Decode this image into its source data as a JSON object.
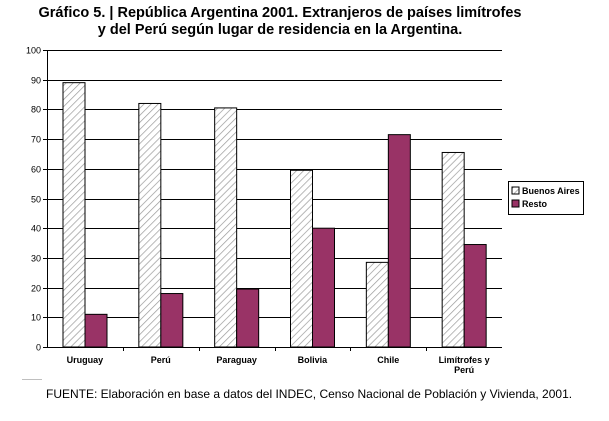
{
  "chart_data": {
    "type": "bar",
    "title_line1": "Gráfico 5. | República Argentina 2001. Extranjeros de países limítrofes",
    "title_line2": "y del Perú según lugar de residencia en la Argentina.",
    "categories": [
      "Uruguay",
      "Perú",
      "Paraguay",
      "Bolivia",
      "Chile",
      "Limítrofes y Perú"
    ],
    "series": [
      {
        "name": "Buenos Aires",
        "values": [
          89,
          82,
          80.5,
          59.5,
          28.5,
          65.5
        ],
        "color": "#ffffff",
        "pattern": "diagonal-hatch"
      },
      {
        "name": "Resto",
        "values": [
          11,
          18,
          19.5,
          40,
          71.5,
          34.5
        ],
        "color": "#993366"
      }
    ],
    "ylim": [
      0,
      100
    ],
    "yticks": [
      0,
      10,
      20,
      30,
      40,
      50,
      60,
      70,
      80,
      90,
      100
    ],
    "grid": true,
    "legend_position": "right"
  },
  "source_note": "FUENTE: Elaboración en base a datos del INDEC, Censo Nacional de Población y Vivienda, 2001."
}
